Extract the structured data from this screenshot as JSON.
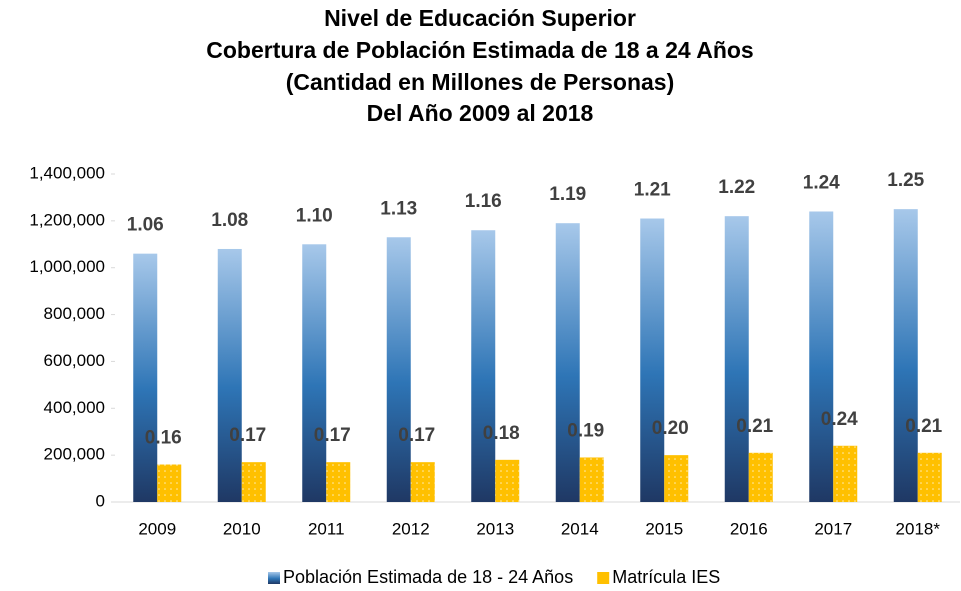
{
  "chart_data": {
    "type": "bar",
    "title": [
      "Nivel de Educación Superior",
      "Cobertura de Población Estimada de 18 a 24 Años",
      "(Cantidad en Millones de Personas)",
      "Del Año 2009 al 2018"
    ],
    "categories": [
      "2009",
      "2010",
      "2011",
      "2012",
      "2013",
      "2014",
      "2015",
      "2016",
      "2017",
      "2018*"
    ],
    "series": [
      {
        "name": "Población Estimada de 18 - 24 Años",
        "color": "#2e75b6",
        "values": [
          1060000,
          1080000,
          1100000,
          1130000,
          1160000,
          1190000,
          1210000,
          1220000,
          1240000,
          1250000
        ],
        "value_labels": [
          "1.06",
          "1.08",
          "1.10",
          "1.13",
          "1.16",
          "1.19",
          "1.21",
          "1.22",
          "1.24",
          "1.25"
        ]
      },
      {
        "name": "Matrícula IES",
        "color": "#ffc000",
        "values": [
          160000,
          170000,
          170000,
          170000,
          180000,
          190000,
          200000,
          210000,
          240000,
          210000
        ],
        "value_labels": [
          "0.16",
          "0.17",
          "0.17",
          "0.17",
          "0.18",
          "0.19",
          "0.20",
          "0.21",
          "0.24",
          "0.21"
        ]
      }
    ],
    "ylim": [
      0,
      1400000
    ],
    "yticks": [
      0,
      {
        "value": 200000,
        "label": "200,000"
      },
      {
        "value": 400000,
        "label": "400,000"
      },
      {
        "value": 600000,
        "label": "600,000"
      },
      {
        "value": 800000,
        "label": "800,000"
      },
      {
        "value": 1000000,
        "label": "1,000,000"
      },
      {
        "value": 1200000,
        "label": "1,200,000"
      },
      {
        "value": 1400000,
        "label": "1,400,000"
      }
    ],
    "legend": "bottom"
  }
}
